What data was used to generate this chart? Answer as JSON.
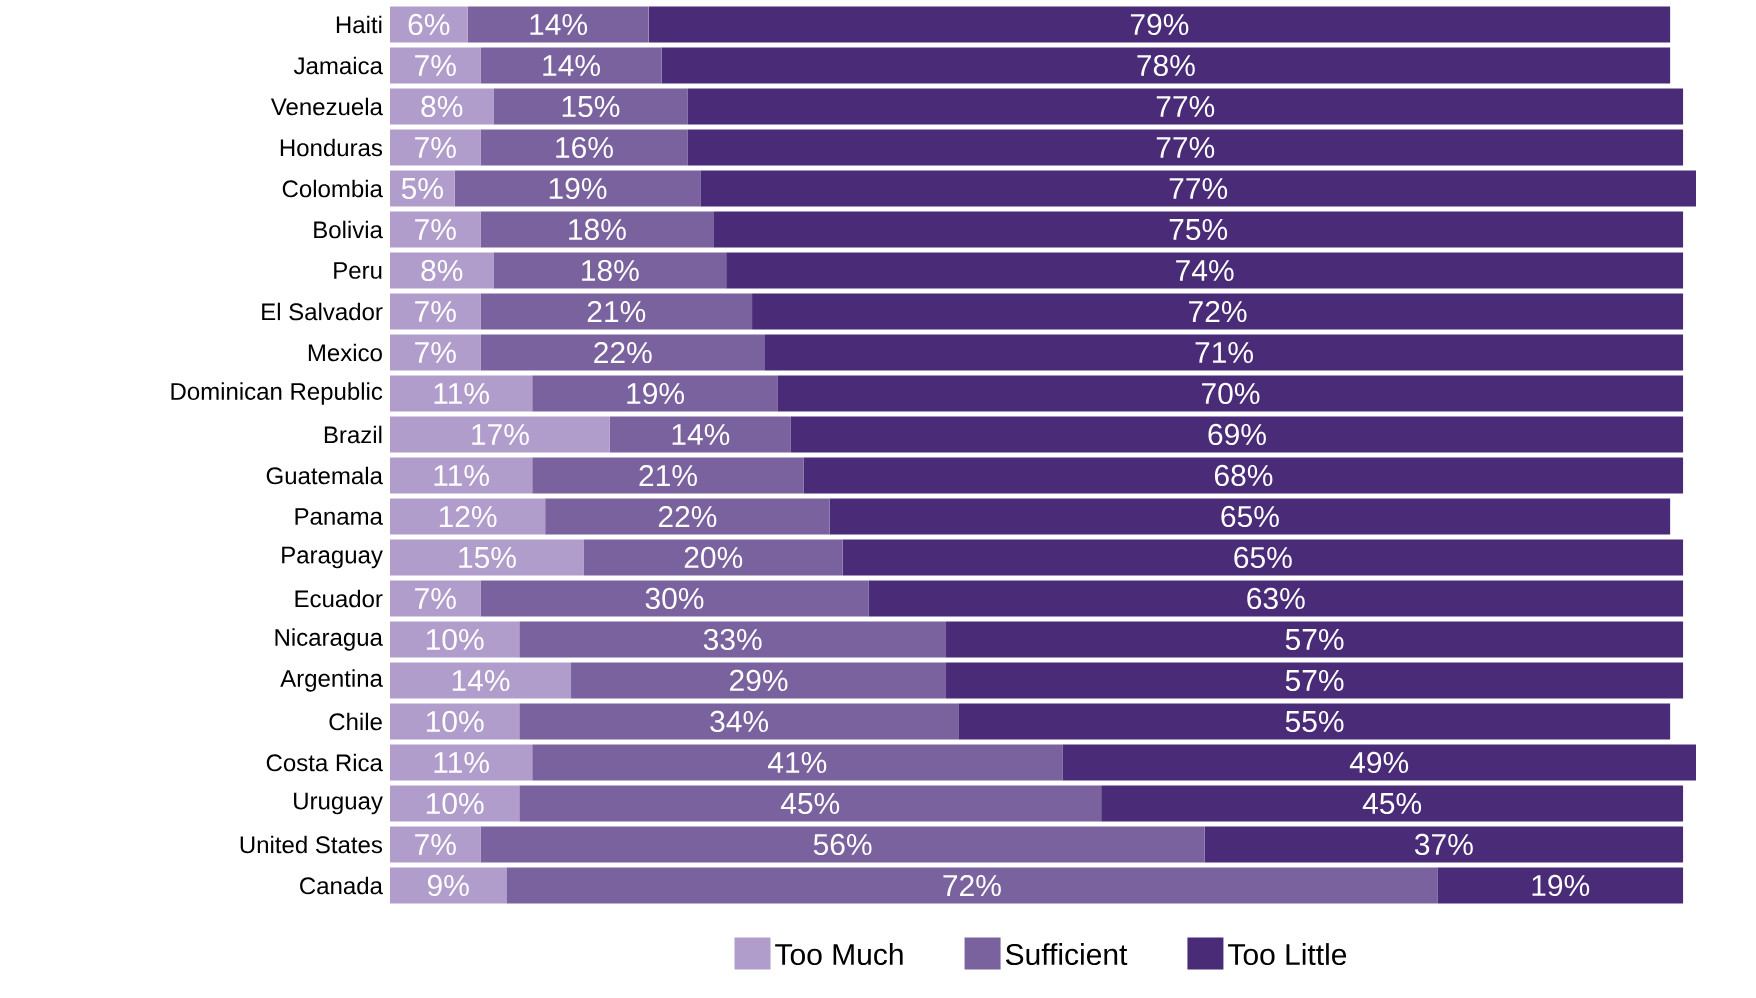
{
  "chart_data": {
    "type": "bar",
    "orientation": "horizontal",
    "stacked": true,
    "legend": "bottom",
    "tick_labels": "y",
    "xlim": [
      0,
      101
    ],
    "categories": [
      "Haiti",
      "Jamaica",
      "Venezuela",
      "Honduras",
      "Colombia",
      "Bolivia",
      "Peru",
      "El Salvador",
      "Mexico",
      "Dominican Republic",
      "Brazil",
      "Guatemala",
      "Panama",
      "Paraguay",
      "Ecuador",
      "Nicaragua",
      "Argentina",
      "Chile",
      "Costa Rica",
      "Uruguay",
      "United States",
      "Canada"
    ],
    "series": [
      {
        "name": "Too Much",
        "color": "#b19dcc",
        "values": [
          6,
          7,
          8,
          7,
          5,
          7,
          8,
          7,
          7,
          11,
          17,
          11,
          12,
          15,
          7,
          10,
          14,
          10,
          11,
          10,
          7,
          9
        ],
        "value_labels": [
          "6%",
          "7%",
          "8%",
          "7%",
          "5%",
          "7%",
          "8%",
          "7%",
          "7%",
          "11%",
          "17%",
          "11%",
          "12%",
          "15%",
          "7%",
          "10%",
          "14%",
          "10%",
          "11%",
          "10%",
          "7%",
          "9%"
        ]
      },
      {
        "name": "Sufficient",
        "color": "#7a629f",
        "values": [
          14,
          14,
          15,
          16,
          19,
          18,
          18,
          21,
          22,
          19,
          14,
          21,
          22,
          20,
          30,
          33,
          29,
          34,
          41,
          45,
          56,
          72
        ],
        "value_labels": [
          "14%",
          "14%",
          "15%",
          "16%",
          "19%",
          "18%",
          "18%",
          "21%",
          "22%",
          "19%",
          "14%",
          "21%",
          "22%",
          "20%",
          "30%",
          "33%",
          "29%",
          "34%",
          "41%",
          "45%",
          "56%",
          "72%"
        ]
      },
      {
        "name": "Too Little",
        "color": "#4a2b78",
        "values": [
          79,
          78,
          77,
          77,
          77,
          75,
          74,
          72,
          71,
          70,
          69,
          68,
          65,
          65,
          63,
          57,
          57,
          55,
          49,
          45,
          37,
          19
        ],
        "value_labels": [
          "79%",
          "78%",
          "77%",
          "77%",
          "77%",
          "75%",
          "74%",
          "72%",
          "71%",
          "70%",
          "69%",
          "68%",
          "65%",
          "65%",
          "63%",
          "57%",
          "57%",
          "55%",
          "49%",
          "45%",
          "37%",
          "19%"
        ]
      }
    ]
  }
}
